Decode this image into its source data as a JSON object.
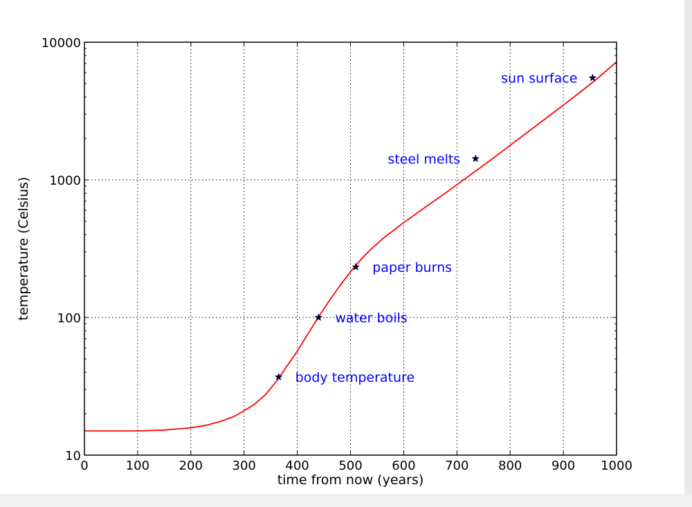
{
  "chart_data": {
    "type": "line",
    "title": "",
    "xlabel": "time from now (years)",
    "ylabel": "temperature (Celsius)",
    "xlim": [
      0,
      1000
    ],
    "ylim": [
      10,
      10000
    ],
    "yscale": "log",
    "grid": true,
    "x_ticks": [
      0,
      100,
      200,
      300,
      400,
      500,
      600,
      700,
      800,
      900,
      1000
    ],
    "x_tick_labels": [
      "0",
      "100",
      "200",
      "300",
      "400",
      "500",
      "600",
      "700",
      "800",
      "900",
      "1000"
    ],
    "y_ticks": [
      10,
      100,
      1000,
      10000
    ],
    "y_tick_labels": [
      "10",
      "100",
      "1000",
      "10000"
    ],
    "series": [
      {
        "color": "#ff0000",
        "x": [
          0,
          50,
          100,
          150,
          200,
          230,
          260,
          280,
          300,
          320,
          340,
          360,
          380,
          400,
          420,
          440,
          460,
          480,
          500,
          520,
          540,
          560,
          600,
          640,
          680,
          720,
          760,
          800,
          840,
          880,
          920,
          960,
          1000
        ],
        "y": [
          15,
          15,
          15,
          15.2,
          15.8,
          16.5,
          17.8,
          19,
          21,
          23.5,
          27.5,
          34,
          44,
          57,
          76,
          101,
          132,
          170,
          215,
          265,
          318,
          372,
          490,
          630,
          810,
          1050,
          1360,
          1780,
          2330,
          3050,
          4000,
          5300,
          7200
        ]
      }
    ],
    "annotations": [
      {
        "text": "body temperature",
        "x": 365,
        "y": 37,
        "color": "#0000ff",
        "marker": "star",
        "marker_color": "#000033",
        "align": "right"
      },
      {
        "text": "water boils",
        "x": 440,
        "y": 100,
        "color": "#0000ff",
        "marker": "star",
        "marker_color": "#000033",
        "align": "right"
      },
      {
        "text": "paper burns",
        "x": 510,
        "y": 233,
        "color": "#0000ff",
        "marker": "star",
        "marker_color": "#000033",
        "align": "right"
      },
      {
        "text": "steel melts",
        "x": 735,
        "y": 1425,
        "color": "#0000ff",
        "marker": "star",
        "marker_color": "#000033",
        "align": "left"
      },
      {
        "text": "sun surface",
        "x": 955,
        "y": 5505,
        "color": "#0000ff",
        "marker": "star",
        "marker_color": "#000033",
        "align": "left"
      }
    ]
  }
}
